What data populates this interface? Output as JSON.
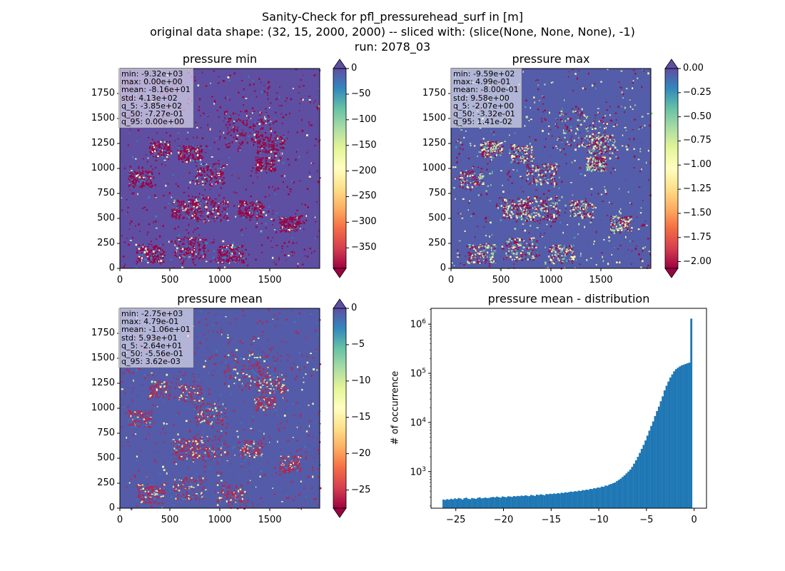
{
  "figure": {
    "title_line1": "Sanity-Check for pfl_pressurehead_surf in [m]",
    "title_line2": "original data shape: (32, 15, 2000, 2000) -- sliced with: (slice(None, None, None), -1)",
    "title_line3": "run: 2078_03"
  },
  "colormap": {
    "name": "Spectral",
    "stops": [
      "#9e0142",
      "#d53e4f",
      "#f46d43",
      "#fdae61",
      "#fee08b",
      "#ffffbf",
      "#e6f598",
      "#abdda4",
      "#66c2a5",
      "#3288bd",
      "#5e4fa2"
    ]
  },
  "chart_data": [
    {
      "type": "heatmap",
      "title": "pressure min",
      "xlim": [
        0,
        2000
      ],
      "ylim": [
        0,
        2000
      ],
      "xticks": [
        "0",
        "500",
        "1000",
        "1500"
      ],
      "yticks": [
        "0",
        "250",
        "500",
        "750",
        "1000",
        "1250",
        "1500",
        "1750"
      ],
      "colorbar": {
        "min": -390,
        "max": 0,
        "extend": "both",
        "ticks": [
          "0",
          "−50",
          "−100",
          "−150",
          "−200",
          "−250",
          "−300",
          "−350"
        ],
        "tick_values": [
          0,
          -50,
          -100,
          -150,
          -200,
          -250,
          -300,
          -350
        ]
      },
      "stats": [
        "min: -9.32e+03",
        "max: 0.00e+00",
        "mean: -8.16e+01",
        "std: 4.13e+02",
        "q_5: -3.85e+02",
        "q_50: -7.27e-01",
        "q_95: 0.00e+00"
      ],
      "background_value": 0
    },
    {
      "type": "heatmap",
      "title": "pressure max",
      "xlim": [
        0,
        2000
      ],
      "ylim": [
        0,
        2000
      ],
      "xticks": [
        "0",
        "500",
        "1000",
        "1500"
      ],
      "yticks": [
        "0",
        "250",
        "500",
        "750",
        "1000",
        "1250",
        "1500",
        "1750"
      ],
      "colorbar": {
        "min": -2.07,
        "max": 0.0,
        "extend": "both",
        "ticks": [
          "0.00",
          "−0.25",
          "−0.50",
          "−0.75",
          "−1.00",
          "−1.25",
          "−1.50",
          "−1.75",
          "−2.00"
        ],
        "tick_values": [
          0,
          -0.25,
          -0.5,
          -0.75,
          -1.0,
          -1.25,
          -1.5,
          -1.75,
          -2.0
        ]
      },
      "stats": [
        "min: -9.59e+02",
        "max: 4.99e-01",
        "mean: -8.00e-01",
        "std: 9.58e+00",
        "q_5: -2.07e+00",
        "q_50: -3.32e-01",
        "q_95: 1.41e-02"
      ],
      "background_value": -0.05
    },
    {
      "type": "heatmap",
      "title": "pressure mean",
      "xlim": [
        0,
        2000
      ],
      "ylim": [
        0,
        2000
      ],
      "xticks": [
        "0",
        "500",
        "1000",
        "1500"
      ],
      "yticks": [
        "0",
        "250",
        "500",
        "750",
        "1000",
        "1250",
        "1500",
        "1750"
      ],
      "colorbar": {
        "min": -27.5,
        "max": 0,
        "extend": "both",
        "ticks": [
          "0",
          "−5",
          "−10",
          "−15",
          "−20",
          "−25"
        ],
        "tick_values": [
          0,
          -5,
          -10,
          -15,
          -20,
          -25
        ]
      },
      "stats": [
        "min: -2.75e+03",
        "max: 4.79e-01",
        "mean: -1.06e+01",
        "std: 5.93e+01",
        "q_5: -2.64e+01",
        "q_50: -5.56e-01",
        "q_95: 3.62e-03"
      ],
      "background_value": -0.6
    },
    {
      "type": "bar",
      "title": "pressure mean - distribution",
      "ylabel": "# of occurrence",
      "xlabel": "",
      "yscale": "log",
      "xlim": [
        -27.6,
        1.3
      ],
      "ylim": [
        180,
        2100000
      ],
      "xticks": [
        "−25",
        "−20",
        "−15",
        "−10",
        "−5",
        "0"
      ],
      "xtick_values": [
        -25,
        -20,
        -15,
        -10,
        -5,
        0
      ],
      "yticks": [
        "10^3",
        "10^4",
        "10^5",
        "10^6"
      ],
      "ytick_values": [
        1000,
        10000,
        100000,
        1000000
      ],
      "bar_color": "#1f77b4",
      "bins": {
        "start": -26.4,
        "step": 0.2
      },
      "values": [
        270,
        265,
        275,
        268,
        280,
        272,
        285,
        276,
        290,
        283,
        270,
        288,
        295,
        280,
        275,
        290,
        285,
        278,
        292,
        300,
        285,
        290,
        296,
        288,
        292,
        300,
        305,
        298,
        310,
        302,
        295,
        312,
        306,
        300,
        315,
        310,
        305,
        318,
        312,
        320,
        315,
        325,
        318,
        330,
        322,
        316,
        335,
        328,
        320,
        340,
        333,
        345,
        338,
        330,
        350,
        345,
        355,
        348,
        360,
        352,
        365,
        358,
        372,
        366,
        380,
        374,
        385,
        392,
        386,
        400,
        395,
        410,
        402,
        420,
        415,
        430,
        425,
        445,
        440,
        460,
        455,
        475,
        470,
        495,
        490,
        520,
        515,
        545,
        560,
        580,
        600,
        640,
        680,
        720,
        780,
        840,
        920,
        1000,
        1100,
        1250,
        1450,
        1700,
        2000,
        2400,
        2900,
        3500,
        4300,
        5400,
        6800,
        8500,
        10500,
        13500,
        17000,
        21000,
        27000,
        34000,
        45000,
        56000,
        68000,
        82000,
        95000,
        110000,
        122000,
        130000,
        138000,
        145000,
        150000,
        155000,
        160000,
        165000,
        1300000
      ]
    }
  ]
}
